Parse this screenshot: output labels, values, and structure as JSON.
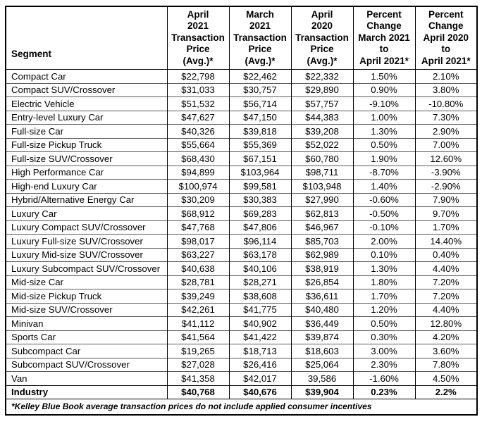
{
  "colors": {
    "background": "#ffffff",
    "text": "#000000",
    "outer_border": "#000000",
    "row_divider": "#595959"
  },
  "ui": {
    "segment_header": "Segment",
    "col_headers": [
      "April\n2021\nTransaction\nPrice\n(Avg.)*",
      "March\n2021\nTransaction\nPrice\n(Avg.)*",
      "April\n2020\nTransaction\nPrice\n(Avg.)*",
      "Percent\nChange\nMarch 2021\nto\nApril 2021*",
      "Percent\nChange\nApril 2020\nto\nApril 2021*"
    ]
  },
  "chart_data": {
    "type": "table",
    "title": "",
    "columns": [
      "Segment",
      "April 2021 Transaction Price (Avg.)*",
      "March 2021 Transaction Price (Avg.)*",
      "April 2020 Transaction Price (Avg.)*",
      "Percent Change March 2021 to April 2021*",
      "Percent Change April 2020 to April 2021*"
    ],
    "rows": [
      [
        "Compact Car",
        "$22,798",
        "$22,462",
        "$22,332",
        "1.50%",
        "2.10%"
      ],
      [
        "Compact SUV/Crossover",
        "$31,033",
        "$30,757",
        "$29,890",
        "0.90%",
        "3.80%"
      ],
      [
        "Electric Vehicle",
        "$51,532",
        "$56,714",
        "$57,757",
        "-9.10%",
        "-10.80%"
      ],
      [
        "Entry-level Luxury Car",
        "$47,627",
        "$47,150",
        "$44,383",
        "1.00%",
        "7.30%"
      ],
      [
        "Full-size Car",
        "$40,326",
        "$39,818",
        "$39,208",
        "1.30%",
        "2.90%"
      ],
      [
        "Full-size Pickup Truck",
        "$55,664",
        "$55,369",
        "$52,022",
        "0.50%",
        "7.00%"
      ],
      [
        "Full-size SUV/Crossover",
        "$68,430",
        "$67,151",
        "$60,780",
        "1.90%",
        "12.60%"
      ],
      [
        "High Performance Car",
        "$94,899",
        "$103,964",
        "$98,711",
        "-8.70%",
        "-3.90%"
      ],
      [
        "High-end Luxury Car",
        "$100,974",
        "$99,581",
        "$103,948",
        "1.40%",
        "-2.90%"
      ],
      [
        "Hybrid/Alternative Energy Car",
        "$30,209",
        "$30,383",
        "$27,990",
        "-0.60%",
        "7.90%"
      ],
      [
        "Luxury Car",
        "$68,912",
        "$69,283",
        "$62,813",
        "-0.50%",
        "9.70%"
      ],
      [
        "Luxury Compact SUV/Crossover",
        "$47,768",
        "$47,806",
        "$46,967",
        "-0.10%",
        "1.70%"
      ],
      [
        "Luxury Full-size SUV/Crossover",
        "$98,017",
        "$96,114",
        "$85,703",
        "2.00%",
        "14.40%"
      ],
      [
        "Luxury Mid-size SUV/Crossover",
        "$63,227",
        "$63,178",
        "$62,989",
        "0.10%",
        "0.40%"
      ],
      [
        "Luxury Subcompact SUV/Crossover",
        "$40,638",
        "$40,106",
        "$38,919",
        "1.30%",
        "4.40%"
      ],
      [
        "Mid-size Car",
        "$28,781",
        "$28,271",
        "$26,854",
        "1.80%",
        "7.20%"
      ],
      [
        "Mid-size Pickup Truck",
        "$39,249",
        "$38,608",
        "$36,611",
        "1.70%",
        "7.20%"
      ],
      [
        "Mid-size SUV/Crossover",
        "$42,261",
        "$41,775",
        "$40,480",
        "1.20%",
        "4.40%"
      ],
      [
        "Minivan",
        "$41,112",
        "$40,902",
        "$36,449",
        "0.50%",
        "12.80%"
      ],
      [
        "Sports Car",
        "$41,564",
        "$41,422",
        "$39,874",
        "0.30%",
        "4.20%"
      ],
      [
        "Subcompact Car",
        "$19,265",
        "$18,713",
        "$18,603",
        "3.00%",
        "3.60%"
      ],
      [
        "Subcompact SUV/Crossover",
        "$27,028",
        "$26,416",
        "$25,064",
        "2.30%",
        "7.80%"
      ],
      [
        "Van",
        "$41,358",
        "$42,017",
        "39,586",
        "-1.60%",
        "4.50%"
      ],
      [
        "Industry",
        "$40,768",
        "$40,676",
        "$39,904",
        "0.23%",
        "2.2%"
      ]
    ],
    "bold_rows": [
      "Industry"
    ],
    "footnote": "*Kelley Blue Book average transaction prices do not include applied consumer incentives"
  }
}
